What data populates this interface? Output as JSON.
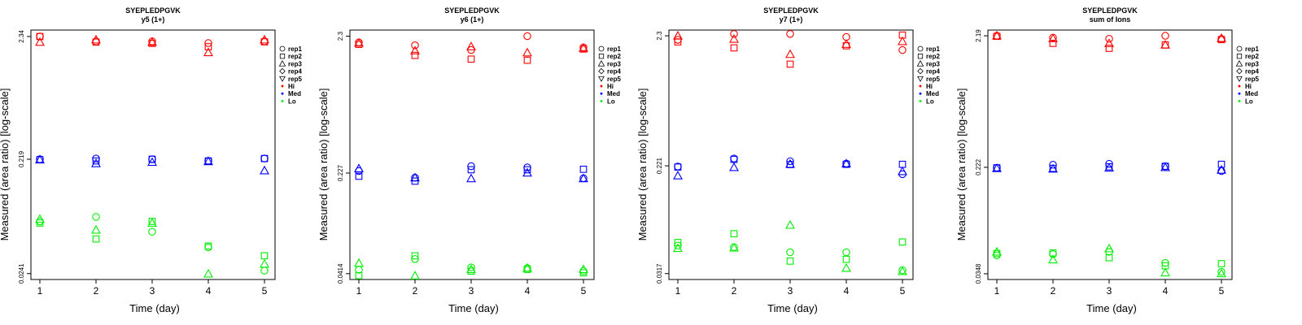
{
  "colors": {
    "Hi": "#ff0000",
    "Med": "#0000ff",
    "Lo": "#00ee00",
    "axis": "#000000"
  },
  "chart_data": [
    {
      "type": "scatter",
      "title": "SYEPLEDPGVK",
      "subtitle": "y5 (1+)",
      "xlabel": "Time (day)",
      "ylabel": "Measured (area ratio) [log-scale]",
      "xlim": [
        1,
        5
      ],
      "x_ticks": [
        "1",
        "2",
        "3",
        "4",
        "5"
      ],
      "y_ticks": [
        {
          "value": 2.34,
          "label": "2.34"
        },
        {
          "value": 0.219,
          "label": "0.219"
        },
        {
          "value": 0.0241,
          "label": "0.0241"
        }
      ],
      "ylim": [
        0.0215,
        2.65
      ],
      "legend": [
        "rep1",
        "rep2",
        "rep3",
        "rep4",
        "rep5",
        "Hi",
        "Med",
        "Lo"
      ],
      "series": [
        {
          "group": "Hi",
          "rep": "rep1",
          "x": [
            1,
            2,
            3,
            4,
            5
          ],
          "y": [
            2.34,
            2.13,
            2.13,
            2.06,
            2.13
          ]
        },
        {
          "group": "Hi",
          "rep": "rep2",
          "x": [
            1,
            2,
            3,
            4,
            5
          ],
          "y": [
            2.34,
            2.1,
            2.05,
            1.92,
            2.11
          ]
        },
        {
          "group": "Hi",
          "rep": "rep3",
          "x": [
            1,
            2,
            3,
            4,
            5
          ],
          "y": [
            2.1,
            2.2,
            2.1,
            1.72,
            2.2
          ]
        },
        {
          "group": "Med",
          "rep": "rep1",
          "x": [
            1,
            2,
            3,
            4,
            5
          ],
          "y": [
            0.219,
            0.222,
            0.219,
            0.212,
            0.222
          ]
        },
        {
          "group": "Med",
          "rep": "rep2",
          "x": [
            1,
            2,
            3,
            4,
            5
          ],
          "y": [
            0.217,
            0.212,
            0.219,
            0.212,
            0.222
          ]
        },
        {
          "group": "Med",
          "rep": "rep3",
          "x": [
            1,
            2,
            3,
            4,
            5
          ],
          "y": [
            0.217,
            0.202,
            0.207,
            0.21,
            0.176
          ]
        },
        {
          "group": "Lo",
          "rep": "rep1",
          "x": [
            1,
            2,
            3,
            4,
            5
          ],
          "y": [
            0.066,
            0.072,
            0.054,
            0.04,
            0.0255
          ]
        },
        {
          "group": "Lo",
          "rep": "rep2",
          "x": [
            1,
            2,
            3,
            4,
            5
          ],
          "y": [
            0.064,
            0.047,
            0.066,
            0.041,
            0.034
          ]
        },
        {
          "group": "Lo",
          "rep": "rep3",
          "x": [
            1,
            2,
            3,
            4,
            5
          ],
          "y": [
            0.069,
            0.056,
            0.064,
            0.024,
            0.029
          ]
        }
      ]
    },
    {
      "type": "scatter",
      "title": "SYEPLEDPGVK",
      "subtitle": "y6 (1+)",
      "xlabel": "Time (day)",
      "ylabel": "Measured (area ratio) [log-scale]",
      "xlim": [
        1,
        5
      ],
      "x_ticks": [
        "1",
        "2",
        "3",
        "4",
        "5"
      ],
      "y_ticks": [
        {
          "value": 2.3,
          "label": "2.3"
        },
        {
          "value": 0.227,
          "label": "0.227"
        },
        {
          "value": 0.0414,
          "label": "0.0414"
        }
      ],
      "ylim": [
        0.0375,
        2.55
      ],
      "legend": [
        "rep1",
        "rep2",
        "rep3",
        "rep4",
        "rep5",
        "Hi",
        "Med",
        "Lo"
      ],
      "series": [
        {
          "group": "Hi",
          "rep": "rep1",
          "x": [
            1,
            2,
            3,
            4,
            5
          ],
          "y": [
            2.07,
            1.97,
            1.82,
            2.3,
            1.9
          ]
        },
        {
          "group": "Hi",
          "rep": "rep2",
          "x": [
            1,
            2,
            3,
            4,
            5
          ],
          "y": [
            2.0,
            1.66,
            1.56,
            1.53,
            1.85
          ]
        },
        {
          "group": "Hi",
          "rep": "rep3",
          "x": [
            1,
            2,
            3,
            4,
            5
          ],
          "y": [
            2.05,
            1.8,
            1.93,
            1.74,
            1.88
          ]
        },
        {
          "group": "Med",
          "rep": "rep1",
          "x": [
            1,
            2,
            3,
            4,
            5
          ],
          "y": [
            0.235,
            0.21,
            0.255,
            0.25,
            0.208
          ]
        },
        {
          "group": "Med",
          "rep": "rep2",
          "x": [
            1,
            2,
            3,
            4,
            5
          ],
          "y": [
            0.215,
            0.198,
            0.24,
            0.24,
            0.242
          ]
        },
        {
          "group": "Med",
          "rep": "rep3",
          "x": [
            1,
            2,
            3,
            4,
            5
          ],
          "y": [
            0.245,
            0.21,
            0.207,
            0.228,
            0.207
          ]
        },
        {
          "group": "Lo",
          "rep": "rep1",
          "x": [
            1,
            2,
            3,
            4,
            5
          ],
          "y": [
            0.0442,
            0.053,
            0.046,
            0.0455,
            0.0432
          ]
        },
        {
          "group": "Lo",
          "rep": "rep2",
          "x": [
            1,
            2,
            3,
            4,
            5
          ],
          "y": [
            0.04,
            0.056,
            0.0432,
            0.0445,
            0.042
          ]
        },
        {
          "group": "Lo",
          "rep": "rep3",
          "x": [
            1,
            2,
            3,
            4,
            5
          ],
          "y": [
            0.0495,
            0.04,
            0.0445,
            0.0455,
            0.0445
          ]
        }
      ]
    },
    {
      "type": "scatter",
      "title": "SYEPLEDPGVK",
      "subtitle": "y7 (1+)",
      "xlabel": "Time (day)",
      "ylabel": "Measured (area ratio) [log-scale]",
      "xlim": [
        1,
        5
      ],
      "x_ticks": [
        "1",
        "2",
        "3",
        "4",
        "5"
      ],
      "y_ticks": [
        {
          "value": 2.3,
          "label": "2.3"
        },
        {
          "value": 0.221,
          "label": "0.221"
        },
        {
          "value": 0.0317,
          "label": "0.0317"
        }
      ],
      "ylim": [
        0.0285,
        2.55
      ],
      "legend": [
        "rep1",
        "rep2",
        "rep3",
        "rep4",
        "rep5",
        "Hi",
        "Med",
        "Lo"
      ],
      "series": [
        {
          "group": "Hi",
          "rep": "rep1",
          "x": [
            1,
            2,
            3,
            4,
            5
          ],
          "y": [
            2.14,
            2.38,
            2.38,
            2.25,
            1.78
          ]
        },
        {
          "group": "Hi",
          "rep": "rep2",
          "x": [
            1,
            2,
            3,
            4,
            5
          ],
          "y": [
            2.06,
            1.85,
            1.38,
            1.92,
            2.33
          ]
        },
        {
          "group": "Hi",
          "rep": "rep3",
          "x": [
            1,
            2,
            3,
            4,
            5
          ],
          "y": [
            2.3,
            2.17,
            1.65,
            1.98,
            2.08
          ]
        },
        {
          "group": "Med",
          "rep": "rep1",
          "x": [
            1,
            2,
            3,
            4,
            5
          ],
          "y": [
            0.218,
            0.252,
            0.24,
            0.23,
            0.19
          ]
        },
        {
          "group": "Med",
          "rep": "rep2",
          "x": [
            1,
            2,
            3,
            4,
            5
          ],
          "y": [
            0.216,
            0.248,
            0.226,
            0.227,
            0.227
          ]
        },
        {
          "group": "Med",
          "rep": "rep3",
          "x": [
            1,
            2,
            3,
            4,
            5
          ],
          "y": [
            0.185,
            0.215,
            0.228,
            0.23,
            0.2
          ]
        },
        {
          "group": "Lo",
          "rep": "rep1",
          "x": [
            1,
            2,
            3,
            4,
            5
          ],
          "y": [
            0.0525,
            0.051,
            0.0465,
            0.0465,
            0.0337
          ]
        },
        {
          "group": "Lo",
          "rep": "rep2",
          "x": [
            1,
            2,
            3,
            4,
            5
          ],
          "y": [
            0.0555,
            0.065,
            0.0397,
            0.041,
            0.056
          ]
        },
        {
          "group": "Lo",
          "rep": "rep3",
          "x": [
            1,
            2,
            3,
            4,
            5
          ],
          "y": [
            0.05,
            0.0505,
            0.076,
            0.035,
            0.033
          ]
        }
      ]
    },
    {
      "type": "scatter",
      "title": "SYEPLEDPGVK",
      "subtitle": "sum of Ions",
      "xlabel": "Time (day)",
      "ylabel": "Measured (area ratio) [log-scale]",
      "xlim": [
        1,
        5
      ],
      "x_ticks": [
        "1",
        "2",
        "3",
        "4",
        "5"
      ],
      "y_ticks": [
        {
          "value": 2.19,
          "label": "2.19"
        },
        {
          "value": 0.222,
          "label": "0.222"
        },
        {
          "value": 0.0348,
          "label": "0.0348"
        }
      ],
      "ylim": [
        0.0315,
        2.42
      ],
      "legend": [
        "rep1",
        "rep2",
        "rep3",
        "rep4",
        "rep5",
        "Hi",
        "Med",
        "Lo"
      ],
      "series": [
        {
          "group": "Hi",
          "rep": "rep1",
          "x": [
            1,
            2,
            3,
            4,
            5
          ],
          "y": [
            2.19,
            2.12,
            2.08,
            2.19,
            2.07
          ]
        },
        {
          "group": "Hi",
          "rep": "rep2",
          "x": [
            1,
            2,
            3,
            4,
            5
          ],
          "y": [
            2.17,
            1.92,
            1.76,
            1.87,
            2.05
          ]
        },
        {
          "group": "Hi",
          "rep": "rep3",
          "x": [
            1,
            2,
            3,
            4,
            5
          ],
          "y": [
            2.19,
            2.09,
            1.92,
            1.87,
            2.1
          ]
        },
        {
          "group": "Med",
          "rep": "rep1",
          "x": [
            1,
            2,
            3,
            4,
            5
          ],
          "y": [
            0.22,
            0.232,
            0.236,
            0.226,
            0.208
          ]
        },
        {
          "group": "Med",
          "rep": "rep2",
          "x": [
            1,
            2,
            3,
            4,
            5
          ],
          "y": [
            0.22,
            0.218,
            0.224,
            0.226,
            0.234
          ]
        },
        {
          "group": "Med",
          "rep": "rep3",
          "x": [
            1,
            2,
            3,
            4,
            5
          ],
          "y": [
            0.218,
            0.216,
            0.22,
            0.222,
            0.212
          ]
        },
        {
          "group": "Lo",
          "rep": "rep1",
          "x": [
            1,
            2,
            3,
            4,
            5
          ],
          "y": [
            0.048,
            0.049,
            0.051,
            0.042,
            0.036
          ]
        },
        {
          "group": "Lo",
          "rep": "rep2",
          "x": [
            1,
            2,
            3,
            4,
            5
          ],
          "y": [
            0.0495,
            0.05,
            0.046,
            0.04,
            0.0415
          ]
        },
        {
          "group": "Lo",
          "rep": "rep3",
          "x": [
            1,
            2,
            3,
            4,
            5
          ],
          "y": [
            0.051,
            0.0445,
            0.054,
            0.0355,
            0.035
          ]
        }
      ]
    }
  ]
}
